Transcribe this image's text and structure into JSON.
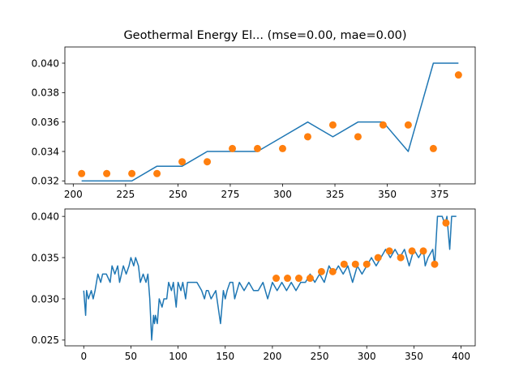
{
  "chart_data": [
    {
      "type": "line",
      "title": "Geothermal Energy El... (mse=0.00, mae=0.00)",
      "xlabel": "",
      "ylabel": "",
      "xlim": [
        196,
        392
      ],
      "ylim": [
        0.0318,
        0.0411
      ],
      "xticks": [
        200,
        225,
        250,
        275,
        300,
        325,
        350,
        375
      ],
      "yticks": [
        0.032,
        0.034,
        0.036,
        0.038,
        0.04
      ],
      "ytick_labels": [
        "0.032",
        "0.034",
        "0.036",
        "0.038",
        "0.040"
      ],
      "grid": false,
      "series": [
        {
          "kind": "line",
          "color": "#1f77b4",
          "x": [
            204,
            216,
            228,
            240,
            252,
            264,
            276,
            288,
            300,
            312,
            324,
            336,
            348,
            360,
            372,
            384
          ],
          "y": [
            0.032,
            0.032,
            0.032,
            0.033,
            0.033,
            0.034,
            0.034,
            0.034,
            0.035,
            0.036,
            0.035,
            0.036,
            0.036,
            0.034,
            0.04,
            0.04
          ]
        },
        {
          "kind": "scatter",
          "color": "#ff7f0e",
          "x": [
            204,
            216,
            228,
            240,
            252,
            264,
            276,
            288,
            300,
            312,
            324,
            336,
            348,
            360,
            372,
            384
          ],
          "y": [
            0.0325,
            0.0325,
            0.0325,
            0.0325,
            0.0333,
            0.0333,
            0.0342,
            0.0342,
            0.0342,
            0.035,
            0.0358,
            0.035,
            0.0358,
            0.0358,
            0.0342,
            0.0392
          ]
        }
      ]
    },
    {
      "type": "line",
      "title": "",
      "xlabel": "",
      "ylabel": "",
      "xlim": [
        -20,
        415
      ],
      "ylim": [
        0.0243,
        0.0409
      ],
      "xticks": [
        0,
        50,
        100,
        150,
        200,
        250,
        300,
        350,
        400
      ],
      "yticks": [
        0.025,
        0.03,
        0.035,
        0.04
      ],
      "ytick_labels": [
        "0.025",
        "0.030",
        "0.035",
        "0.040"
      ],
      "grid": false,
      "series": [
        {
          "kind": "line",
          "color": "#1f77b4",
          "x": [
            0,
            2,
            3,
            5,
            8,
            10,
            12,
            15,
            18,
            20,
            24,
            28,
            30,
            33,
            36,
            38,
            42,
            45,
            48,
            50,
            53,
            55,
            58,
            60,
            63,
            66,
            68,
            70,
            72,
            74,
            75,
            76,
            78,
            80,
            83,
            85,
            88,
            90,
            93,
            95,
            98,
            100,
            103,
            105,
            108,
            110,
            115,
            120,
            125,
            128,
            130,
            132,
            135,
            140,
            145,
            148,
            150,
            152,
            155,
            158,
            160,
            165,
            170,
            175,
            180,
            185,
            190,
            195,
            200,
            205,
            210,
            215,
            220,
            225,
            230,
            235,
            240,
            245,
            250,
            255,
            260,
            265,
            270,
            275,
            280,
            285,
            290,
            295,
            300,
            305,
            310,
            315,
            320,
            325,
            330,
            335,
            340,
            345,
            350,
            355,
            360,
            362,
            365,
            370,
            372,
            375,
            380,
            383,
            385,
            388,
            390,
            395
          ],
          "y": [
            0.031,
            0.028,
            0.031,
            0.03,
            0.031,
            0.03,
            0.031,
            0.033,
            0.032,
            0.033,
            0.033,
            0.032,
            0.034,
            0.033,
            0.034,
            0.032,
            0.034,
            0.033,
            0.034,
            0.035,
            0.034,
            0.035,
            0.034,
            0.032,
            0.033,
            0.032,
            0.033,
            0.03,
            0.025,
            0.028,
            0.027,
            0.028,
            0.027,
            0.03,
            0.029,
            0.03,
            0.03,
            0.032,
            0.031,
            0.032,
            0.029,
            0.032,
            0.031,
            0.032,
            0.03,
            0.032,
            0.032,
            0.032,
            0.031,
            0.03,
            0.031,
            0.031,
            0.03,
            0.031,
            0.027,
            0.031,
            0.03,
            0.031,
            0.032,
            0.032,
            0.03,
            0.032,
            0.031,
            0.032,
            0.031,
            0.031,
            0.032,
            0.03,
            0.032,
            0.031,
            0.032,
            0.031,
            0.032,
            0.031,
            0.032,
            0.032,
            0.033,
            0.032,
            0.033,
            0.032,
            0.034,
            0.033,
            0.034,
            0.033,
            0.034,
            0.032,
            0.034,
            0.033,
            0.034,
            0.035,
            0.034,
            0.035,
            0.036,
            0.035,
            0.036,
            0.035,
            0.036,
            0.034,
            0.036,
            0.035,
            0.036,
            0.034,
            0.035,
            0.036,
            0.034,
            0.04,
            0.04,
            0.039,
            0.04,
            0.036,
            0.04,
            0.04
          ]
        },
        {
          "kind": "scatter",
          "color": "#ff7f0e",
          "x": [
            204,
            216,
            228,
            240,
            252,
            264,
            276,
            288,
            300,
            312,
            324,
            336,
            348,
            360,
            372,
            384
          ],
          "y": [
            0.0325,
            0.0325,
            0.0325,
            0.0325,
            0.0333,
            0.0333,
            0.0342,
            0.0342,
            0.0342,
            0.035,
            0.0358,
            0.035,
            0.0358,
            0.0358,
            0.0342,
            0.0392
          ]
        }
      ]
    }
  ]
}
